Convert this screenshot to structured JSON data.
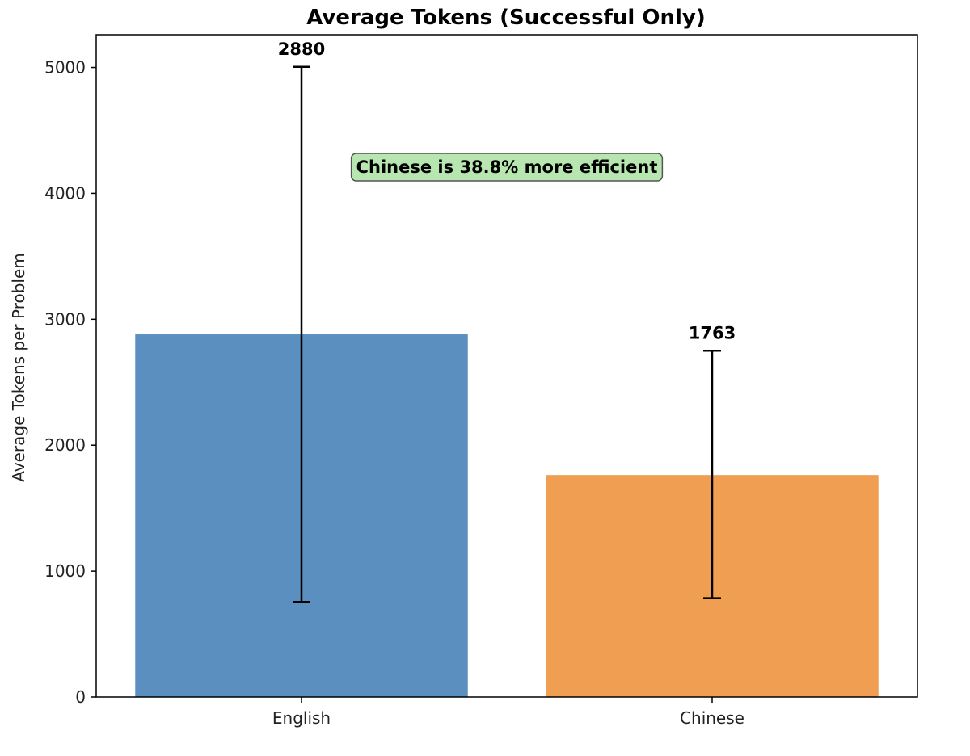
{
  "chart_data": {
    "type": "bar",
    "title": "Average Tokens (Successful Only)",
    "xlabel": "",
    "ylabel": "Average Tokens per Problem",
    "categories": [
      "English",
      "Chinese"
    ],
    "values": [
      2880,
      1763
    ],
    "error_bars": [
      {
        "low": 755,
        "high": 5005
      },
      {
        "low": 785,
        "high": 2750
      }
    ],
    "value_labels": [
      "2880",
      "1763"
    ],
    "colors": [
      "#5b8fbf",
      "#f09e52"
    ],
    "ylim": [
      0,
      5260
    ],
    "yticks": [
      0,
      1000,
      2000,
      3000,
      4000,
      5000
    ],
    "ytick_labels": [
      "0",
      "1000",
      "2000",
      "3000",
      "4000",
      "5000"
    ],
    "grid": false,
    "annotation": {
      "text": "Chinese is 38.8% more efficient",
      "background": "#b8e6b0"
    }
  }
}
